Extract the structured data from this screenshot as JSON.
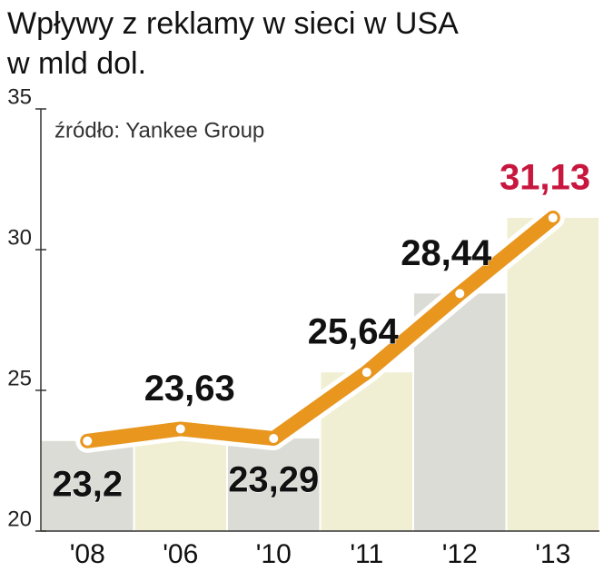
{
  "chart_data": {
    "type": "line",
    "title": "Wpływy z reklamy w sieci w USA",
    "subtitle": "w mld dol.",
    "source": "źródło: Yankee Group",
    "categories": [
      "'08",
      "'06",
      "'10",
      "'11",
      "'12",
      "'13"
    ],
    "series": [
      {
        "name": "Wpływy",
        "color": "#e8961e",
        "values": [
          23.2,
          23.63,
          23.29,
          25.64,
          28.44,
          31.13
        ],
        "value_labels": [
          "23,2",
          "23,63",
          "23,29",
          "25,64",
          "28,44",
          "31,13"
        ]
      }
    ],
    "bar_colors": [
      "#dcdcd6",
      "#f1efd3"
    ],
    "highlight_color": "#c8173e",
    "ylim": [
      20,
      35
    ],
    "yticks": [
      20,
      25,
      30,
      35
    ]
  }
}
